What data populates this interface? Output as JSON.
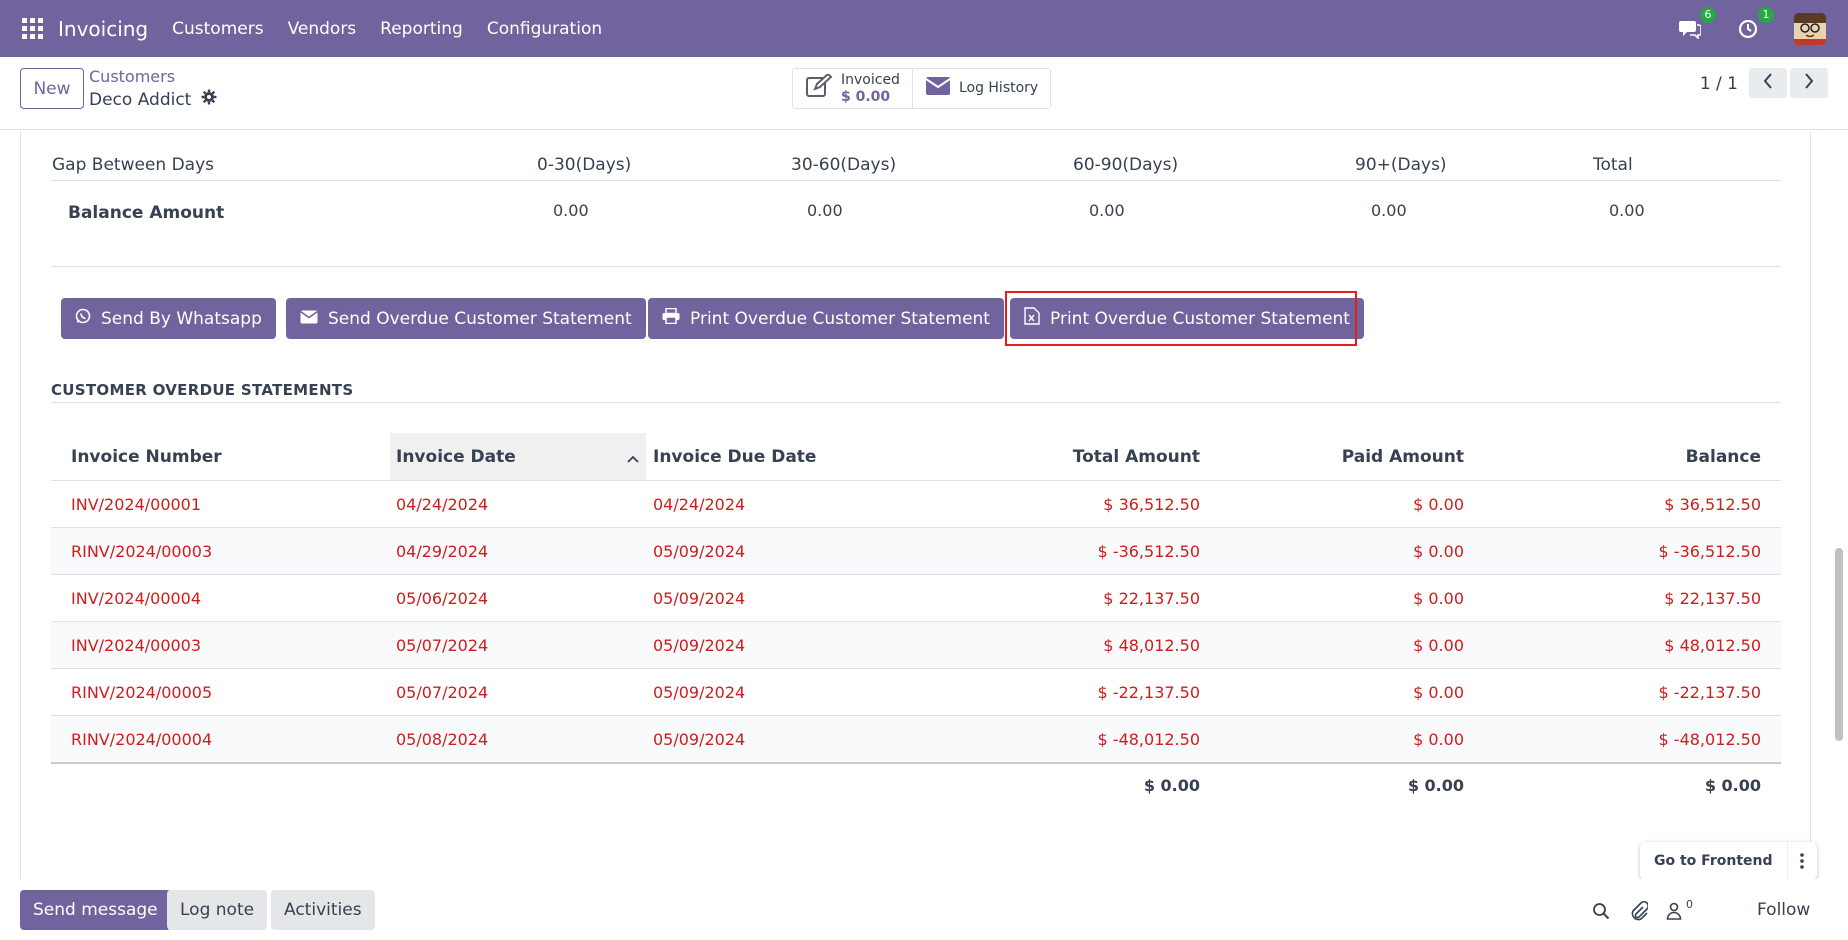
{
  "navbar": {
    "brand": "Invoicing",
    "menu": [
      "Customers",
      "Vendors",
      "Reporting",
      "Configuration"
    ],
    "messages_badge": "6",
    "activities_badge": "1"
  },
  "control": {
    "new_label": "New",
    "breadcrumb_parent": "Customers",
    "record_name": "Deco Addict",
    "smart_invoiced_label": "Invoiced",
    "smart_invoiced_value": "$ 0.00",
    "smart_log_label": "Log History",
    "pager": "1 / 1"
  },
  "aging": {
    "headers": [
      "Gap Between Days",
      "0-30(Days)",
      "30-60(Days)",
      "60-90(Days)",
      "90+(Days)",
      "Total"
    ],
    "row_label": "Balance Amount",
    "values": [
      "0.00",
      "0.00",
      "0.00",
      "0.00",
      "0.00"
    ]
  },
  "actions": {
    "whatsapp": "Send By Whatsapp",
    "send_overdue": "Send Overdue Customer Statement",
    "print_overdue": "Print Overdue Customer Statement",
    "print_overdue_xls": "Print Overdue Customer Statement"
  },
  "section_title": "CUSTOMER OVERDUE STATEMENTS",
  "table": {
    "headers": [
      "Invoice Number",
      "Invoice Date",
      "Invoice Due Date",
      "Total Amount",
      "Paid Amount",
      "Balance"
    ],
    "rows": [
      [
        "INV/2024/00001",
        "04/24/2024",
        "04/24/2024",
        "$ 36,512.50",
        "$ 0.00",
        "$ 36,512.50"
      ],
      [
        "RINV/2024/00003",
        "04/29/2024",
        "05/09/2024",
        "$ -36,512.50",
        "$ 0.00",
        "$ -36,512.50"
      ],
      [
        "INV/2024/00004",
        "05/06/2024",
        "05/09/2024",
        "$ 22,137.50",
        "$ 0.00",
        "$ 22,137.50"
      ],
      [
        "INV/2024/00003",
        "05/07/2024",
        "05/09/2024",
        "$ 48,012.50",
        "$ 0.00",
        "$ 48,012.50"
      ],
      [
        "RINV/2024/00005",
        "05/07/2024",
        "05/09/2024",
        "$ -22,137.50",
        "$ 0.00",
        "$ -22,137.50"
      ],
      [
        "RINV/2024/00004",
        "05/08/2024",
        "05/09/2024",
        "$ -48,012.50",
        "$ 0.00",
        "$ -48,012.50"
      ]
    ],
    "totals": [
      "$ 0.00",
      "$ 0.00",
      "$ 0.00"
    ]
  },
  "chatter": {
    "send_message": "Send message",
    "log_note": "Log note",
    "activities": "Activities",
    "followers_count": "0",
    "follow": "Follow"
  },
  "frontend_label": "Go to Frontend",
  "colors": {
    "brand": "#71639e",
    "overdue_text": "#d01c1c",
    "highlight": "#e02020"
  }
}
